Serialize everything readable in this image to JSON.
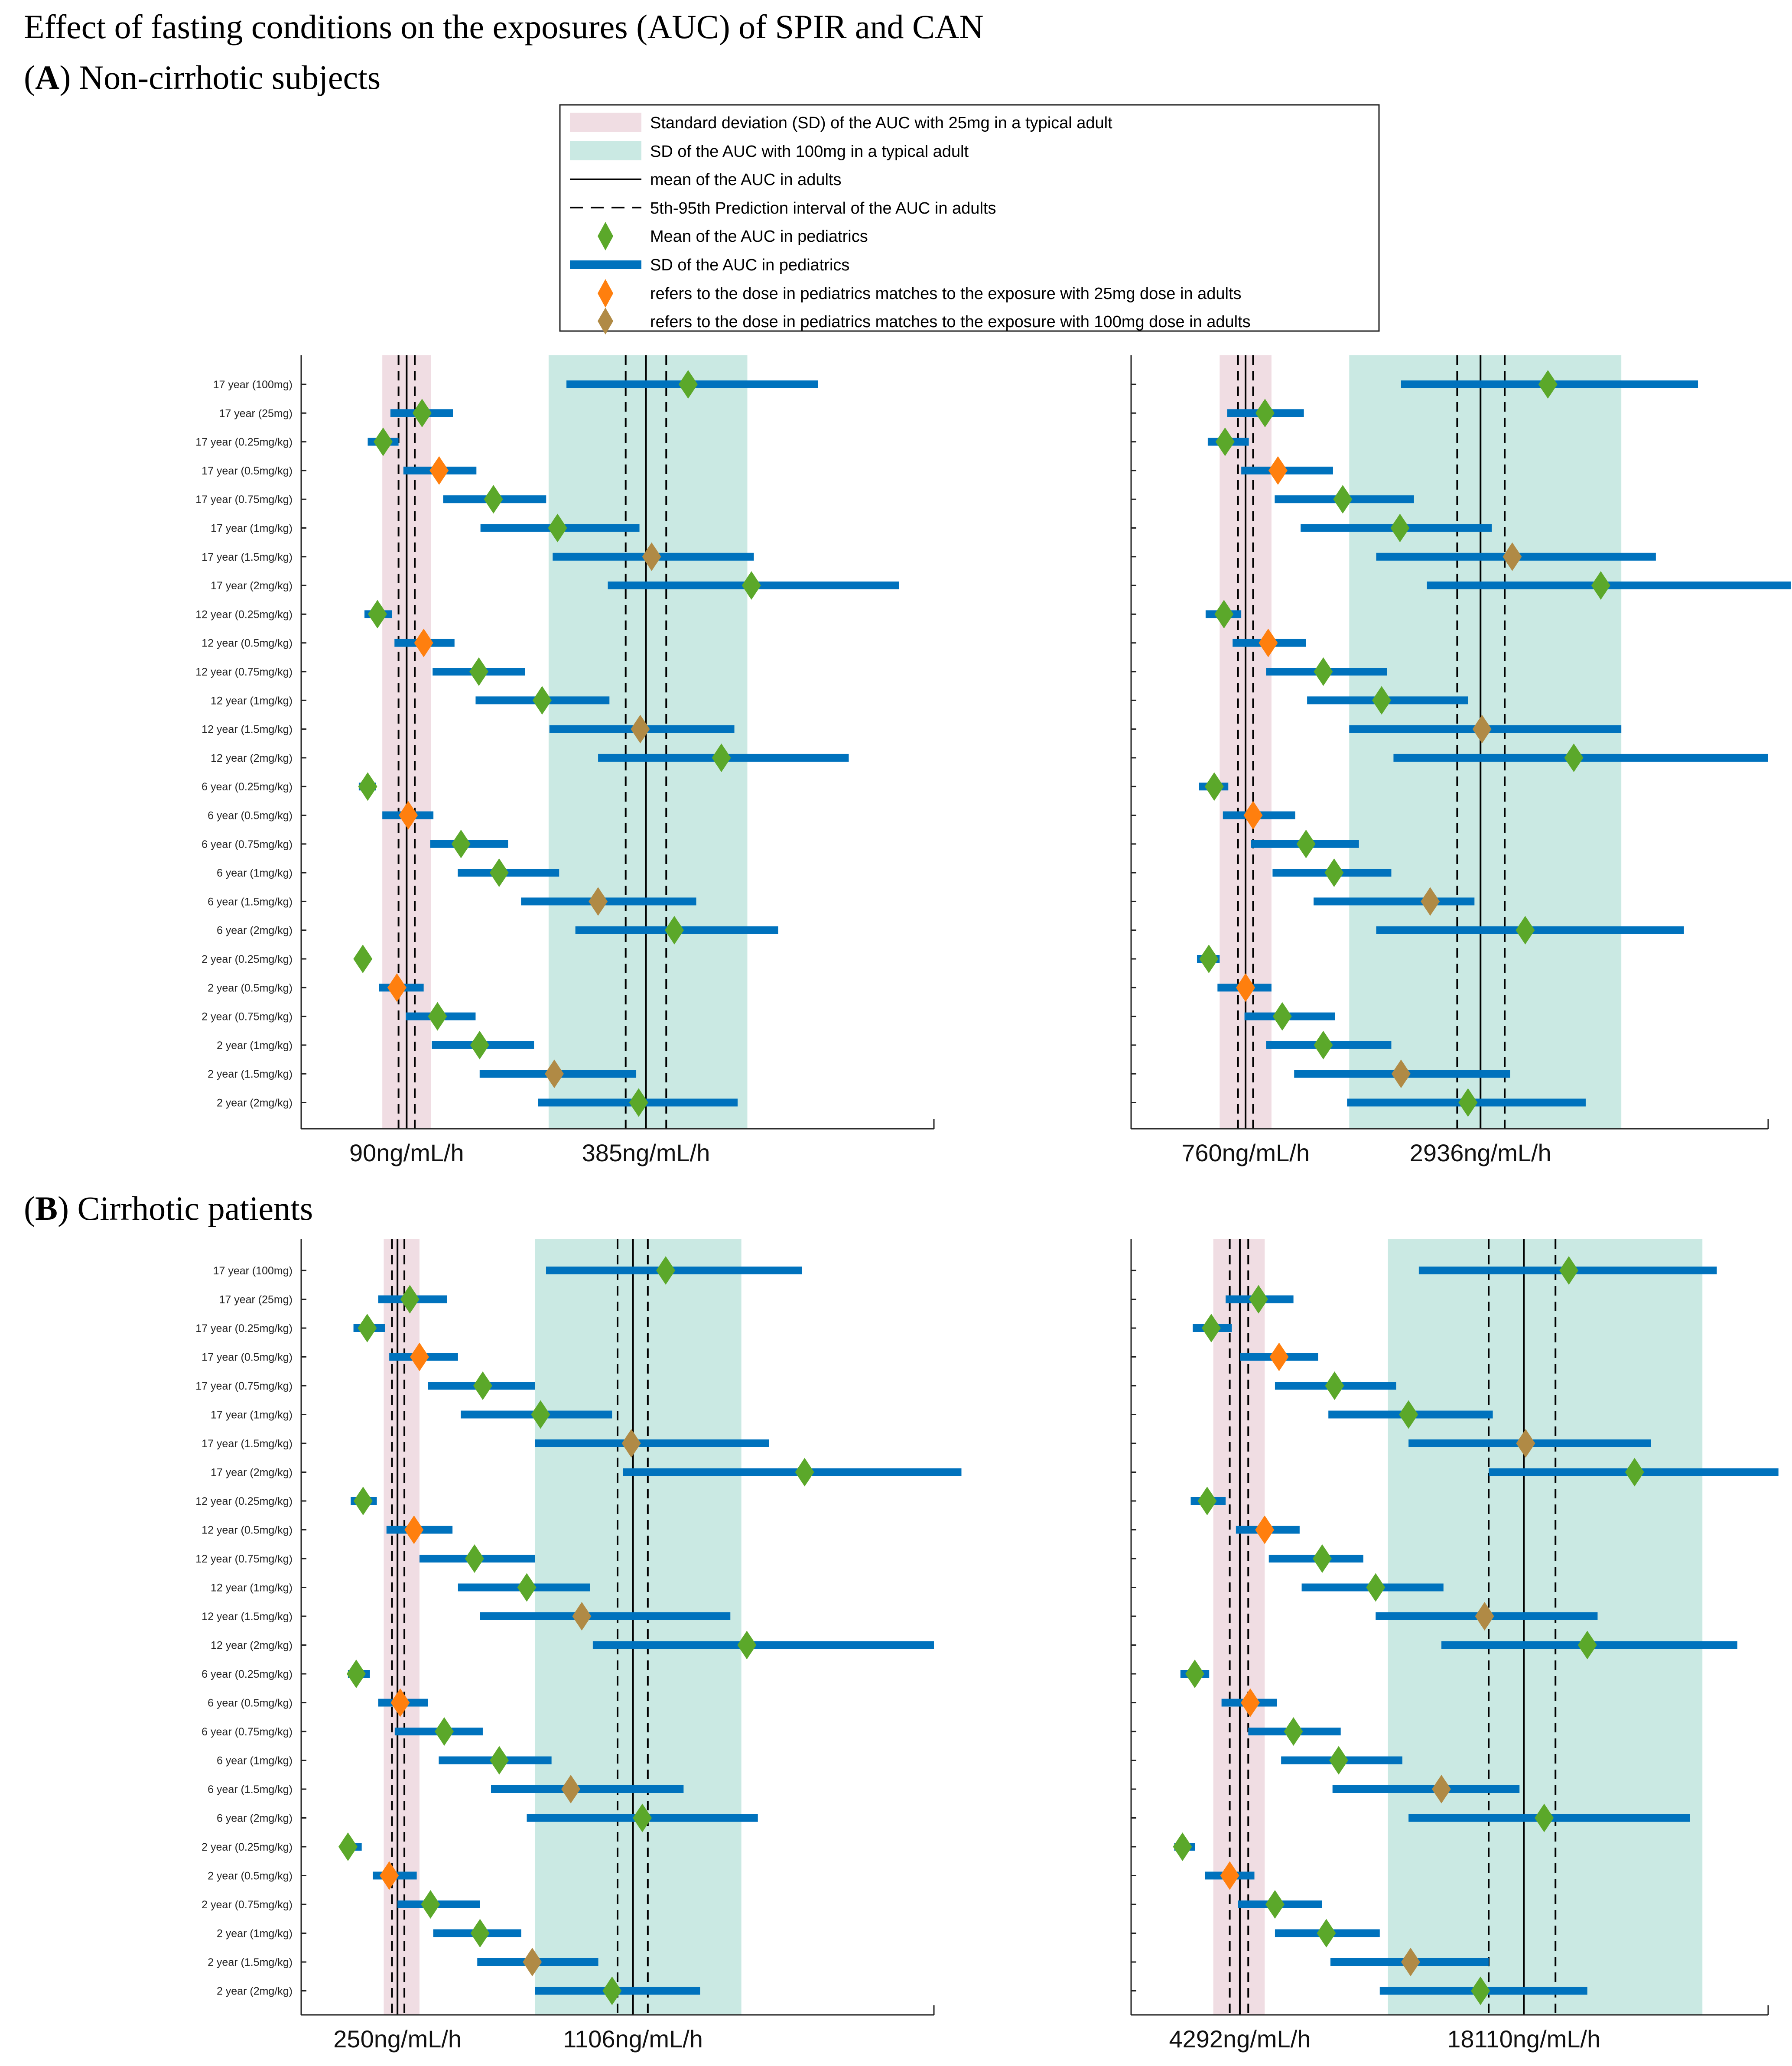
{
  "title": "Effect of fasting conditions on the exposures (AUC) of SPIR and CAN",
  "section_a": {
    "letter": "A",
    "label": ") Non-cirrhotic subjects"
  },
  "section_b": {
    "letter": "B",
    "label": ") Cirrhotic patients"
  },
  "legend": [
    {
      "key": "sd25",
      "label": "Standard deviation (SD) of the AUC with 25mg in a typical adult"
    },
    {
      "key": "sd100",
      "label": "SD of the AUC with 100mg in a typical adult"
    },
    {
      "key": "mean",
      "label": "mean of the AUC in adults"
    },
    {
      "key": "pi",
      "label": "5th-95th Prediction interval of the AUC in adults"
    },
    {
      "key": "ped_mean",
      "label": "Mean of the AUC in pediatrics"
    },
    {
      "key": "ped_sd",
      "label": "SD of the AUC in pediatrics"
    },
    {
      "key": "match25",
      "label": "refers to the dose in pediatrics matches to the exposure with 25mg dose in adults"
    },
    {
      "key": "match100",
      "label": "refers to the dose in pediatrics matches to the exposure with 100mg dose in adults"
    }
  ],
  "colors": {
    "sd25": "#f0dde3",
    "sd100": "#cae9e3",
    "bar": "#0072bd",
    "green": "#5ba82a",
    "orange": "#ff7f0e",
    "tan": "#b08a45",
    "axis": "#222222"
  },
  "chart_data": [
    {
      "type": "forest",
      "panel": "A-left",
      "tick_labels": [
        "90ng/mL/h",
        "385ng/mL/h"
      ],
      "tick_values": [
        90,
        385
      ],
      "xlim": [
        -40,
        740
      ],
      "adult_25mg": {
        "mean": 90,
        "pi": [
          80,
          100
        ],
        "sd": [
          60,
          120
        ]
      },
      "adult_100mg": {
        "mean": 385,
        "pi": [
          360,
          410
        ],
        "sd": [
          265,
          510
        ]
      },
      "categories": [
        "17 year (100mg)",
        "17 year (25mg)",
        "17 year (0.25mg/kg)",
        "17 year (0.5mg/kg)",
        "17 year (0.75mg/kg)",
        "17 year (1mg/kg)",
        "17 year (1.5mg/kg)",
        "17 year (2mg/kg)",
        "12 year (0.25mg/kg)",
        "12 year (0.5mg/kg)",
        "12 year (0.75mg/kg)",
        "12 year (1mg/kg)",
        "12 year (1.5mg/kg)",
        "12 year (2mg/kg)",
        "6 year (0.25mg/kg)",
        "6 year (0.5mg/kg)",
        "6 year (0.75mg/kg)",
        "6 year (1mg/kg)",
        "6 year (1.5mg/kg)",
        "6 year (2mg/kg)",
        "2 year (0.25mg/kg)",
        "2 year (0.5mg/kg)",
        "2 year (0.75mg/kg)",
        "2 year (1mg/kg)",
        "2 year (1.5mg/kg)",
        "2 year (2mg/kg)"
      ],
      "points": [
        {
          "mean": 437,
          "sd_low": 287,
          "sd_high": 597,
          "match": "none"
        },
        {
          "mean": 109,
          "sd_low": 70,
          "sd_high": 147,
          "match": "none"
        },
        {
          "mean": 61,
          "sd_low": 42,
          "sd_high": 80,
          "match": "none"
        },
        {
          "mean": 130,
          "sd_low": 86,
          "sd_high": 176,
          "match": "25mg"
        },
        {
          "mean": 197,
          "sd_low": 135,
          "sd_high": 262,
          "match": "none"
        },
        {
          "mean": 276,
          "sd_low": 181,
          "sd_high": 377,
          "match": "none"
        },
        {
          "mean": 392,
          "sd_low": 270,
          "sd_high": 518,
          "match": "100mg"
        },
        {
          "mean": 515,
          "sd_low": 338,
          "sd_high": 697,
          "match": "none"
        },
        {
          "mean": 54,
          "sd_low": 38,
          "sd_high": 72,
          "match": "none"
        },
        {
          "mean": 111,
          "sd_low": 75,
          "sd_high": 149,
          "match": "25mg"
        },
        {
          "mean": 179,
          "sd_low": 122,
          "sd_high": 236,
          "match": "none"
        },
        {
          "mean": 257,
          "sd_low": 175,
          "sd_high": 340,
          "match": "none"
        },
        {
          "mean": 378,
          "sd_low": 266,
          "sd_high": 494,
          "match": "100mg"
        },
        {
          "mean": 478,
          "sd_low": 326,
          "sd_high": 635,
          "match": "none"
        },
        {
          "mean": 42,
          "sd_low": 31,
          "sd_high": 52,
          "match": "none"
        },
        {
          "mean": 92,
          "sd_low": 60,
          "sd_high": 123,
          "match": "25mg"
        },
        {
          "mean": 157,
          "sd_low": 119,
          "sd_high": 215,
          "match": "none"
        },
        {
          "mean": 204,
          "sd_low": 153,
          "sd_high": 278,
          "match": "none"
        },
        {
          "mean": 326,
          "sd_low": 231,
          "sd_high": 447,
          "match": "100mg"
        },
        {
          "mean": 420,
          "sd_low": 298,
          "sd_high": 548,
          "match": "none"
        },
        {
          "mean": 36,
          "sd_low": 28,
          "sd_high": 45,
          "match": "none"
        },
        {
          "mean": 78,
          "sd_low": 56,
          "sd_high": 111,
          "match": "25mg"
        },
        {
          "mean": 128,
          "sd_low": 89,
          "sd_high": 175,
          "match": "none"
        },
        {
          "mean": 180,
          "sd_low": 121,
          "sd_high": 247,
          "match": "none"
        },
        {
          "mean": 272,
          "sd_low": 180,
          "sd_high": 373,
          "match": "100mg"
        },
        {
          "mean": 376,
          "sd_low": 252,
          "sd_high": 498,
          "match": "none"
        }
      ]
    },
    {
      "type": "forest",
      "panel": "A-right",
      "tick_labels": [
        "760ng/mL/h",
        "2936ng/mL/h"
      ],
      "tick_values": [
        760,
        2936
      ],
      "xlim": [
        -300,
        5600
      ],
      "adult_25mg": {
        "mean": 760,
        "pi": [
          690,
          830
        ],
        "sd": [
          520,
          1000
        ]
      },
      "adult_100mg": {
        "mean": 2936,
        "pi": [
          2720,
          3160
        ],
        "sd": [
          1720,
          4240
        ]
      },
      "categories": [
        "17 year (100mg)",
        "17 year (25mg)",
        "17 year (0.25mg/kg)",
        "17 year (0.5mg/kg)",
        "17 year (0.75mg/kg)",
        "17 year (1mg/kg)",
        "17 year (1.5mg/kg)",
        "17 year (2mg/kg)",
        "12 year (0.25mg/kg)",
        "12 year (0.5mg/kg)",
        "12 year (0.75mg/kg)",
        "12 year (1mg/kg)",
        "12 year (1.5mg/kg)",
        "12 year (2mg/kg)",
        "6 year (0.25mg/kg)",
        "6 year (0.5mg/kg)",
        "6 year (0.75mg/kg)",
        "6 year (1mg/kg)",
        "6 year (1.5mg/kg)",
        "6 year (2mg/kg)",
        "2 year (0.25mg/kg)",
        "2 year (0.5mg/kg)",
        "2 year (0.75mg/kg)",
        "2 year (1mg/kg)",
        "2 year (1.5mg/kg)",
        "2 year (2mg/kg)"
      ],
      "points": [
        {
          "mean": 3560,
          "sd_low": 2200,
          "sd_high": 4950,
          "match": "none"
        },
        {
          "mean": 940,
          "sd_low": 590,
          "sd_high": 1300,
          "match": "none"
        },
        {
          "mean": 570,
          "sd_low": 410,
          "sd_high": 790,
          "match": "none"
        },
        {
          "mean": 1060,
          "sd_low": 720,
          "sd_high": 1570,
          "match": "25mg"
        },
        {
          "mean": 1660,
          "sd_low": 1030,
          "sd_high": 2320,
          "match": "none"
        },
        {
          "mean": 2190,
          "sd_low": 1270,
          "sd_high": 3040,
          "match": "none"
        },
        {
          "mean": 3230,
          "sd_low": 1970,
          "sd_high": 4560,
          "match": "100mg"
        },
        {
          "mean": 4050,
          "sd_low": 2440,
          "sd_high": 5810,
          "match": "none"
        },
        {
          "mean": 560,
          "sd_low": 390,
          "sd_high": 720,
          "match": "none"
        },
        {
          "mean": 970,
          "sd_low": 640,
          "sd_high": 1320,
          "match": "25mg"
        },
        {
          "mean": 1480,
          "sd_low": 950,
          "sd_high": 2070,
          "match": "none"
        },
        {
          "mean": 2020,
          "sd_low": 1330,
          "sd_high": 2820,
          "match": "none"
        },
        {
          "mean": 2950,
          "sd_low": 1720,
          "sd_high": 4240,
          "match": "100mg"
        },
        {
          "mean": 3800,
          "sd_low": 2130,
          "sd_high": 5600,
          "match": "none"
        },
        {
          "mean": 470,
          "sd_low": 330,
          "sd_high": 600,
          "match": "none"
        },
        {
          "mean": 830,
          "sd_low": 550,
          "sd_high": 1220,
          "match": "25mg"
        },
        {
          "mean": 1320,
          "sd_low": 810,
          "sd_high": 1810,
          "match": "none"
        },
        {
          "mean": 1580,
          "sd_low": 1010,
          "sd_high": 2110,
          "match": "none"
        },
        {
          "mean": 2470,
          "sd_low": 1390,
          "sd_high": 2880,
          "match": "100mg"
        },
        {
          "mean": 3350,
          "sd_low": 1970,
          "sd_high": 4820,
          "match": "none"
        },
        {
          "mean": 420,
          "sd_low": 310,
          "sd_high": 520,
          "match": "none"
        },
        {
          "mean": 760,
          "sd_low": 500,
          "sd_high": 1000,
          "match": "25mg"
        },
        {
          "mean": 1100,
          "sd_low": 750,
          "sd_high": 1590,
          "match": "none"
        },
        {
          "mean": 1480,
          "sd_low": 950,
          "sd_high": 2110,
          "match": "none"
        },
        {
          "mean": 2200,
          "sd_low": 1210,
          "sd_high": 3210,
          "match": "100mg"
        },
        {
          "mean": 2820,
          "sd_low": 1700,
          "sd_high": 3910,
          "match": "none"
        }
      ]
    },
    {
      "type": "forest",
      "panel": "B-left",
      "tick_labels": [
        "250ng/mL/h",
        "1106ng/mL/h"
      ],
      "tick_values": [
        250,
        1106
      ],
      "xlim": [
        -100,
        2200
      ],
      "adult_25mg": {
        "mean": 250,
        "pi": [
          230,
          275
        ],
        "sd": [
          200,
          330
        ]
      },
      "adult_100mg": {
        "mean": 1106,
        "pi": [
          1050,
          1160
        ],
        "sd": [
          750,
          1500
        ]
      },
      "categories": [
        "17 year (100mg)",
        "17 year (25mg)",
        "17 year (0.25mg/kg)",
        "17 year (0.5mg/kg)",
        "17 year (0.75mg/kg)",
        "17 year (1mg/kg)",
        "17 year (1.5mg/kg)",
        "17 year (2mg/kg)",
        "12 year (0.25mg/kg)",
        "12 year (0.5mg/kg)",
        "12 year (0.75mg/kg)",
        "12 year (1mg/kg)",
        "12 year (1.5mg/kg)",
        "12 year (2mg/kg)",
        "6 year (0.25mg/kg)",
        "6 year (0.5mg/kg)",
        "6 year (0.75mg/kg)",
        "6 year (1mg/kg)",
        "6 year (1.5mg/kg)",
        "6 year (2mg/kg)",
        "2 year (0.25mg/kg)",
        "2 year (0.5mg/kg)",
        "2 year (0.75mg/kg)",
        "2 year (1mg/kg)",
        "2 year (1.5mg/kg)",
        "2 year (2mg/kg)"
      ],
      "points": [
        {
          "mean": 1225,
          "sd_low": 790,
          "sd_high": 1720,
          "match": "none"
        },
        {
          "mean": 295,
          "sd_low": 180,
          "sd_high": 430,
          "match": "none"
        },
        {
          "mean": 140,
          "sd_low": 90,
          "sd_high": 205,
          "match": "none"
        },
        {
          "mean": 330,
          "sd_low": 220,
          "sd_high": 470,
          "match": "25mg"
        },
        {
          "mean": 560,
          "sd_low": 360,
          "sd_high": 750,
          "match": "none"
        },
        {
          "mean": 770,
          "sd_low": 480,
          "sd_high": 1030,
          "match": "none"
        },
        {
          "mean": 1100,
          "sd_low": 750,
          "sd_high": 1600,
          "match": "100mg"
        },
        {
          "mean": 1730,
          "sd_low": 1070,
          "sd_high": 2300,
          "match": "none"
        },
        {
          "mean": 125,
          "sd_low": 80,
          "sd_high": 175,
          "match": "none"
        },
        {
          "mean": 310,
          "sd_low": 210,
          "sd_high": 450,
          "match": "25mg"
        },
        {
          "mean": 530,
          "sd_low": 330,
          "sd_high": 750,
          "match": "none"
        },
        {
          "mean": 720,
          "sd_low": 470,
          "sd_high": 950,
          "match": "none"
        },
        {
          "mean": 920,
          "sd_low": 550,
          "sd_high": 1460,
          "match": "100mg"
        },
        {
          "mean": 1520,
          "sd_low": 960,
          "sd_high": 2200,
          "match": "none"
        },
        {
          "mean": 100,
          "sd_low": 70,
          "sd_high": 150,
          "match": "none"
        },
        {
          "mean": 260,
          "sd_low": 180,
          "sd_high": 360,
          "match": "25mg"
        },
        {
          "mean": 420,
          "sd_low": 240,
          "sd_high": 560,
          "match": "none"
        },
        {
          "mean": 620,
          "sd_low": 400,
          "sd_high": 810,
          "match": "none"
        },
        {
          "mean": 880,
          "sd_low": 590,
          "sd_high": 1290,
          "match": "100mg"
        },
        {
          "mean": 1140,
          "sd_low": 720,
          "sd_high": 1560,
          "match": "none"
        },
        {
          "mean": 70,
          "sd_low": 50,
          "sd_high": 120,
          "match": "none"
        },
        {
          "mean": 220,
          "sd_low": 160,
          "sd_high": 320,
          "match": "25mg"
        },
        {
          "mean": 370,
          "sd_low": 250,
          "sd_high": 550,
          "match": "none"
        },
        {
          "mean": 550,
          "sd_low": 380,
          "sd_high": 700,
          "match": "none"
        },
        {
          "mean": 740,
          "sd_low": 540,
          "sd_high": 980,
          "match": "100mg"
        },
        {
          "mean": 1030,
          "sd_low": 750,
          "sd_high": 1350,
          "match": "none"
        }
      ]
    },
    {
      "type": "forest",
      "panel": "B-right",
      "tick_labels": [
        "4292ng/mL/h",
        "18110ng/mL/h"
      ],
      "tick_values": [
        4292,
        18110
      ],
      "xlim": [
        -1000,
        30000
      ],
      "adult_25mg": {
        "mean": 4292,
        "pi": [
          3800,
          4700
        ],
        "sd": [
          3000,
          5500
        ]
      },
      "adult_100mg": {
        "mean": 18110,
        "pi": [
          16400,
          19650
        ],
        "sd": [
          11500,
          26800
        ]
      },
      "categories": [
        "17 year (100mg)",
        "17 year (25mg)",
        "17 year (0.25mg/kg)",
        "17 year (0.5mg/kg)",
        "17 year (0.75mg/kg)",
        "17 year (1mg/kg)",
        "17 year (1.5mg/kg)",
        "17 year (2mg/kg)",
        "12 year (0.25mg/kg)",
        "12 year (0.5mg/kg)",
        "12 year (0.75mg/kg)",
        "12 year (1mg/kg)",
        "12 year (1.5mg/kg)",
        "12 year (2mg/kg)",
        "6 year (0.25mg/kg)",
        "6 year (0.5mg/kg)",
        "6 year (0.75mg/kg)",
        "6 year (1mg/kg)",
        "6 year (1.5mg/kg)",
        "6 year (2mg/kg)",
        "2 year (0.25mg/kg)",
        "2 year (0.5mg/kg)",
        "2 year (0.75mg/kg)",
        "2 year (1mg/kg)",
        "2 year (1.5mg/kg)",
        "2 year (2mg/kg)"
      ],
      "points": [
        {
          "mean": 20300,
          "sd_low": 13000,
          "sd_high": 27500,
          "match": "none"
        },
        {
          "mean": 5200,
          "sd_low": 3600,
          "sd_high": 6900,
          "match": "none"
        },
        {
          "mean": 2900,
          "sd_low": 2000,
          "sd_high": 3900,
          "match": "none"
        },
        {
          "mean": 6200,
          "sd_low": 4300,
          "sd_high": 8100,
          "match": "25mg"
        },
        {
          "mean": 8900,
          "sd_low": 6000,
          "sd_high": 11900,
          "match": "none"
        },
        {
          "mean": 12500,
          "sd_low": 8600,
          "sd_high": 16600,
          "match": "none"
        },
        {
          "mean": 18200,
          "sd_low": 12500,
          "sd_high": 24300,
          "match": "100mg"
        },
        {
          "mean": 23500,
          "sd_low": 16400,
          "sd_high": 30500,
          "match": "none"
        },
        {
          "mean": 2700,
          "sd_low": 1900,
          "sd_high": 3600,
          "match": "none"
        },
        {
          "mean": 5500,
          "sd_low": 4100,
          "sd_high": 7200,
          "match": "25mg"
        },
        {
          "mean": 8300,
          "sd_low": 5700,
          "sd_high": 10300,
          "match": "none"
        },
        {
          "mean": 10900,
          "sd_low": 7300,
          "sd_high": 14200,
          "match": "none"
        },
        {
          "mean": 16200,
          "sd_low": 10900,
          "sd_high": 21700,
          "match": "100mg"
        },
        {
          "mean": 21200,
          "sd_low": 14100,
          "sd_high": 28500,
          "match": "none"
        },
        {
          "mean": 2100,
          "sd_low": 1400,
          "sd_high": 2800,
          "match": "none"
        },
        {
          "mean": 4800,
          "sd_low": 3400,
          "sd_high": 6100,
          "match": "25mg"
        },
        {
          "mean": 6900,
          "sd_low": 4700,
          "sd_high": 9200,
          "match": "none"
        },
        {
          "mean": 9100,
          "sd_low": 6300,
          "sd_high": 12200,
          "match": "none"
        },
        {
          "mean": 14100,
          "sd_low": 8800,
          "sd_high": 17900,
          "match": "100mg"
        },
        {
          "mean": 19100,
          "sd_low": 12500,
          "sd_high": 26200,
          "match": "none"
        },
        {
          "mean": 1500,
          "sd_low": 1100,
          "sd_high": 2100,
          "match": "none"
        },
        {
          "mean": 3800,
          "sd_low": 2600,
          "sd_high": 5000,
          "match": "25mg"
        },
        {
          "mean": 6000,
          "sd_low": 4200,
          "sd_high": 8300,
          "match": "none"
        },
        {
          "mean": 8500,
          "sd_low": 6000,
          "sd_high": 11100,
          "match": "none"
        },
        {
          "mean": 12600,
          "sd_low": 8700,
          "sd_high": 16400,
          "match": "100mg"
        },
        {
          "mean": 16000,
          "sd_low": 11100,
          "sd_high": 21200,
          "match": "none"
        }
      ]
    }
  ]
}
